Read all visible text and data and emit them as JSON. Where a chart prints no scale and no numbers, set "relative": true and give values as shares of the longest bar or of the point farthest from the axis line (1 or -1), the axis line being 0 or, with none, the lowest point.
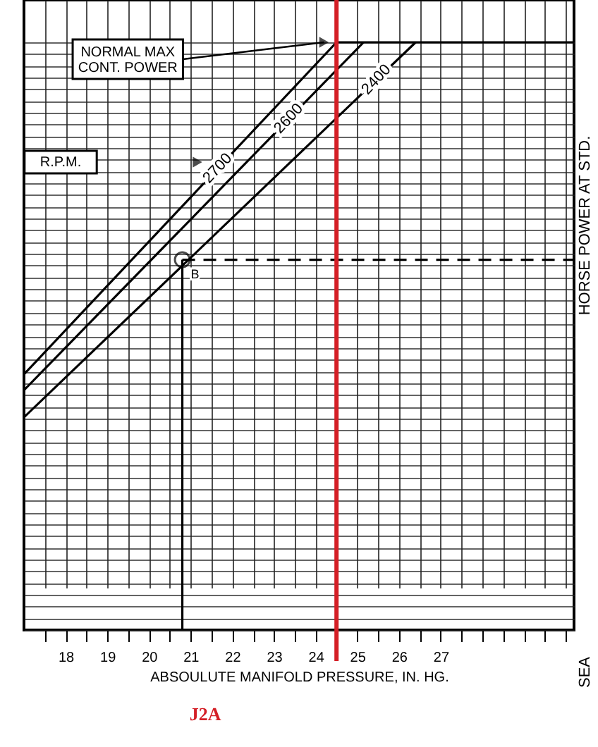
{
  "chart_data": {
    "type": "line",
    "relative": true,
    "xlabel": "ABSOULUTE MANIFOLD PRESSURE, IN. HG.",
    "ylabel": "HORSE POWER AT STD.",
    "xlim": [
      17,
      30.2
    ],
    "xticks": [
      {
        "value": 17.5,
        "label": null
      },
      18,
      {
        "value": 18.5,
        "label": null
      },
      19,
      {
        "value": 19.5,
        "label": null
      },
      20,
      {
        "value": 20.5,
        "label": null
      },
      21,
      {
        "value": 21.5,
        "label": null
      },
      22,
      {
        "value": 22.5,
        "label": null
      },
      23,
      {
        "value": 23.5,
        "label": null
      },
      24,
      {
        "value": 24.5,
        "label": null
      },
      25,
      {
        "value": 25.5,
        "label": null
      },
      26,
      {
        "value": 26.5,
        "label": null
      },
      27,
      {
        "value": 27.5,
        "label": null
      },
      {
        "value": 28,
        "label": null
      },
      {
        "value": 28.5,
        "label": null
      },
      {
        "value": 29,
        "label": null
      },
      {
        "value": 29.5,
        "label": null
      },
      {
        "value": 30,
        "label": null
      }
    ],
    "grid": true,
    "series": [
      {
        "name": "2700",
        "color": "#000000",
        "x": [
          17,
          24.5
        ],
        "values": [
          0.435,
          1.0
        ]
      },
      {
        "name": "2600",
        "color": "#000000",
        "x": [
          17,
          25.15
        ],
        "values": [
          0.408,
          1.0
        ]
      },
      {
        "name": "2400",
        "color": "#000000",
        "x": [
          17,
          26.4
        ],
        "values": [
          0.362,
          1.0
        ]
      },
      {
        "color": "#000000",
        "x": [
          24.5,
          30.2
        ],
        "values": [
          1.0,
          1.0
        ]
      },
      {
        "color": "#000000",
        "x": [
          20.8,
          30.2
        ],
        "values": [
          0.63,
          0.63
        ],
        "line_style": "dashed"
      },
      {
        "color": "#000000",
        "x": [
          20.8,
          20.8
        ],
        "values": [
          0.63,
          0
        ]
      },
      {
        "type": "scatter",
        "color": "#000000",
        "x": [
          20.8
        ],
        "values": [
          0.63
        ],
        "marker": "circle"
      }
    ],
    "ref_lines": [
      {
        "axis": "x",
        "value": 24.5,
        "label": "J2A",
        "color": "#d41f26"
      }
    ],
    "annotations": [
      {
        "text": "NORMAL MAX CONT. POWER",
        "x": 24.2,
        "y": 1.0
      },
      "R.P.M.",
      {
        "text": "B",
        "x": 20.8,
        "y": 0.63
      },
      "SEA"
    ]
  }
}
